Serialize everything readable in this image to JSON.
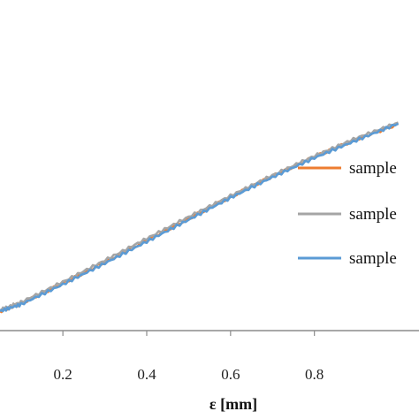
{
  "chart_data": {
    "type": "line",
    "title": "",
    "xlabel": "ε [mm]",
    "ylabel": "",
    "xlim": [
      0.05,
      1.02
    ],
    "ylim": [
      0.0,
      1.0
    ],
    "x_ticks": [
      {
        "value": 0.2,
        "label": "0.2"
      },
      {
        "value": 0.4,
        "label": "0.4"
      },
      {
        "value": 0.6,
        "label": "0.6"
      },
      {
        "value": 0.8,
        "label": "0.8"
      }
    ],
    "grid": false,
    "legend": {
      "placement": "right"
    },
    "series": [
      {
        "name": "sample",
        "color": "#ED7D31",
        "x": [
          0.05,
          0.1,
          0.2,
          0.3,
          0.4,
          0.5,
          0.6,
          0.7,
          0.8,
          0.9,
          1.0
        ],
        "y": [
          0.0,
          0.031,
          0.112,
          0.198,
          0.286,
          0.374,
          0.462,
          0.545,
          0.623,
          0.694,
          0.756
        ]
      },
      {
        "name": "sample",
        "color": "#A5A5A5",
        "x": [
          0.05,
          0.1,
          0.2,
          0.3,
          0.4,
          0.5,
          0.6,
          0.7,
          0.8,
          0.9,
          1.0
        ],
        "y": [
          0.005,
          0.036,
          0.118,
          0.205,
          0.293,
          0.381,
          0.466,
          0.549,
          0.627,
          0.699,
          0.762
        ]
      },
      {
        "name": "sample",
        "color": "#5B9BD5",
        "x": [
          0.05,
          0.1,
          0.2,
          0.3,
          0.4,
          0.5,
          0.6,
          0.7,
          0.8,
          0.9,
          1.0
        ],
        "y": [
          0.0,
          0.027,
          0.108,
          0.193,
          0.281,
          0.369,
          0.458,
          0.541,
          0.619,
          0.69,
          0.758
        ]
      }
    ]
  }
}
